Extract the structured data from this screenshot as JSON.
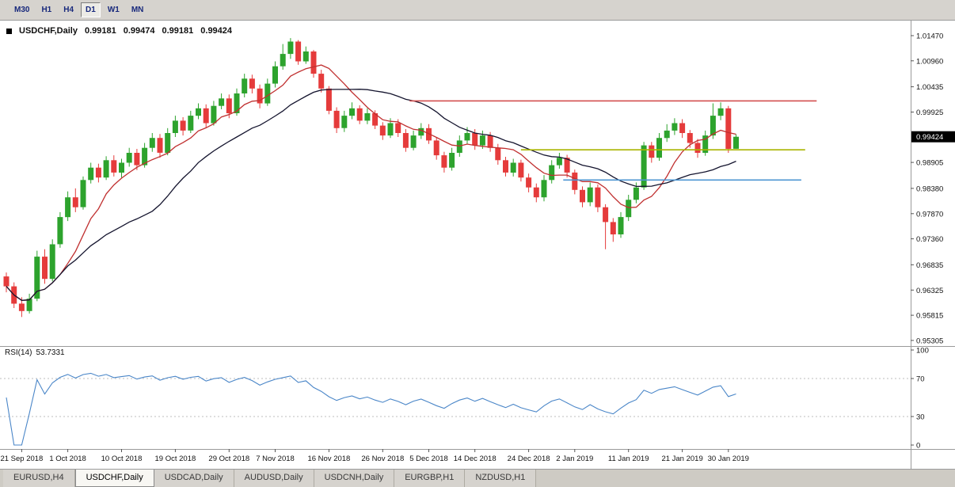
{
  "toolbar": {
    "timeframes": [
      {
        "label": "M30",
        "active": false
      },
      {
        "label": "H1",
        "active": false
      },
      {
        "label": "H4",
        "active": false
      },
      {
        "label": "D1",
        "active": true
      },
      {
        "label": "W1",
        "active": false
      },
      {
        "label": "MN",
        "active": false
      }
    ]
  },
  "chart_header": {
    "symbol": "USDCHF,Daily",
    "open": "0.99181",
    "high": "0.99474",
    "low": "0.99181",
    "close": "0.99424"
  },
  "rsi_header": {
    "label": "RSI(14)",
    "value": "53.7331"
  },
  "price_axis": {
    "labels": [
      "1.01470",
      "1.00960",
      "1.00435",
      "0.99925",
      "0.98905",
      "0.98380",
      "0.97870",
      "0.97360",
      "0.96835",
      "0.96325",
      "0.95815",
      "0.95305"
    ],
    "current": "0.99424"
  },
  "time_axis": {
    "ticks": [
      {
        "label": "21 Sep 2018",
        "index": 2
      },
      {
        "label": "1 Oct 2018",
        "index": 8
      },
      {
        "label": "10 Oct 2018",
        "index": 15
      },
      {
        "label": "19 Oct 2018",
        "index": 22
      },
      {
        "label": "29 Oct 2018",
        "index": 29
      },
      {
        "label": "7 Nov 2018",
        "index": 35
      },
      {
        "label": "16 Nov 2018",
        "index": 42
      },
      {
        "label": "26 Nov 2018",
        "index": 49
      },
      {
        "label": "5 Dec 2018",
        "index": 55
      },
      {
        "label": "14 Dec 2018",
        "index": 61
      },
      {
        "label": "24 Dec 2018",
        "index": 68
      },
      {
        "label": "2 Jan 2019",
        "index": 74
      },
      {
        "label": "11 Jan 2019",
        "index": 81
      },
      {
        "label": "21 Jan 2019",
        "index": 88
      },
      {
        "label": "30 Jan 2019",
        "index": 94
      }
    ]
  },
  "tabbar": {
    "tabs": [
      {
        "label": "EURUSD,H4",
        "active": false
      },
      {
        "label": "USDCHF,Daily",
        "active": true
      },
      {
        "label": "USDCAD,Daily",
        "active": false
      },
      {
        "label": "AUDUSD,Daily",
        "active": false
      },
      {
        "label": "USDCNH,Daily",
        "active": false
      },
      {
        "label": "EURGBP,H1",
        "active": false
      },
      {
        "label": "NZDUSD,H1",
        "active": false
      }
    ]
  },
  "chart_data": {
    "type": "candlestick",
    "symbol": "USDCHF",
    "timeframe": "Daily",
    "last_bar": {
      "open": 0.99181,
      "high": 0.99474,
      "low": 0.99181,
      "close": 0.99424
    },
    "price_range": [
      0.95192,
      1.01774
    ],
    "colors": {
      "bull": "#2DA32D",
      "bear": "#E53B3B"
    },
    "ohlc": [
      [
        0.966,
        0.9668,
        0.9628,
        0.964
      ],
      [
        0.964,
        0.9648,
        0.9596,
        0.9605
      ],
      [
        0.9605,
        0.9618,
        0.9578,
        0.959
      ],
      [
        0.959,
        0.9625,
        0.9585,
        0.9615
      ],
      [
        0.9615,
        0.9712,
        0.961,
        0.97
      ],
      [
        0.97,
        0.9715,
        0.9645,
        0.9655
      ],
      [
        0.9655,
        0.9735,
        0.965,
        0.9725
      ],
      [
        0.9725,
        0.979,
        0.9718,
        0.978
      ],
      [
        0.978,
        0.9832,
        0.9772,
        0.982
      ],
      [
        0.982,
        0.9838,
        0.979,
        0.98
      ],
      [
        0.98,
        0.9862,
        0.9795,
        0.9855
      ],
      [
        0.9855,
        0.989,
        0.9848,
        0.988
      ],
      [
        0.988,
        0.9888,
        0.985,
        0.986
      ],
      [
        0.986,
        0.9903,
        0.9855,
        0.9895
      ],
      [
        0.9895,
        0.9905,
        0.9862,
        0.987
      ],
      [
        0.987,
        0.9898,
        0.986,
        0.989
      ],
      [
        0.989,
        0.992,
        0.9882,
        0.991
      ],
      [
        0.991,
        0.9918,
        0.9875,
        0.9885
      ],
      [
        0.9885,
        0.993,
        0.988,
        0.992
      ],
      [
        0.992,
        0.995,
        0.9912,
        0.994
      ],
      [
        0.994,
        0.9948,
        0.99,
        0.991
      ],
      [
        0.991,
        0.996,
        0.9905,
        0.995
      ],
      [
        0.995,
        0.9985,
        0.9942,
        0.9975
      ],
      [
        0.9975,
        0.9982,
        0.9945,
        0.9955
      ],
      [
        0.9955,
        0.9995,
        0.995,
        0.9985
      ],
      [
        0.9985,
        1.001,
        0.9978,
        1.0
      ],
      [
        1.0,
        1.0008,
        0.996,
        0.997
      ],
      [
        0.997,
        1.0015,
        0.9965,
        1.0005
      ],
      [
        1.0005,
        1.003,
        0.9998,
        1.002
      ],
      [
        1.002,
        1.0028,
        0.998,
        0.999
      ],
      [
        0.999,
        1.004,
        0.9985,
        1.003
      ],
      [
        1.003,
        1.007,
        1.0022,
        1.006
      ],
      [
        1.006,
        1.0068,
        1.003,
        1.004
      ],
      [
        1.004,
        1.0048,
        1.0,
        1.001
      ],
      [
        1.001,
        1.006,
        1.0005,
        1.005
      ],
      [
        1.005,
        1.0095,
        1.0042,
        1.0085
      ],
      [
        1.0085,
        1.013,
        1.0078,
        1.011
      ],
      [
        1.011,
        1.0142,
        1.01,
        1.0135
      ],
      [
        1.0135,
        1.0138,
        1.0088,
        1.0095
      ],
      [
        1.0095,
        1.0125,
        1.009,
        1.0115
      ],
      [
        1.0115,
        1.0118,
        1.0062,
        1.007
      ],
      [
        1.007,
        1.0078,
        1.0032,
        1.004
      ],
      [
        1.004,
        1.0045,
        0.9988,
        0.9995
      ],
      [
        0.9995,
        1.0002,
        0.995,
        0.996
      ],
      [
        0.996,
        0.9995,
        0.9952,
        0.9985
      ],
      [
        0.9985,
        1.0012,
        0.9978,
        1.0
      ],
      [
        1.0,
        1.0006,
        0.9968,
        0.9975
      ],
      [
        0.9975,
        1.0,
        0.9968,
        0.999
      ],
      [
        0.999,
        0.9996,
        0.9958,
        0.9965
      ],
      [
        0.9965,
        0.9972,
        0.9936,
        0.9945
      ],
      [
        0.9945,
        0.998,
        0.994,
        0.997
      ],
      [
        0.997,
        0.9978,
        0.9942,
        0.995
      ],
      [
        0.995,
        0.9958,
        0.9912,
        0.992
      ],
      [
        0.992,
        0.9955,
        0.9915,
        0.9945
      ],
      [
        0.9945,
        0.997,
        0.9938,
        0.996
      ],
      [
        0.996,
        0.9968,
        0.9928,
        0.9935
      ],
      [
        0.9935,
        0.9942,
        0.9896,
        0.9905
      ],
      [
        0.9905,
        0.9912,
        0.987,
        0.988
      ],
      [
        0.988,
        0.992,
        0.9874,
        0.991
      ],
      [
        0.991,
        0.9945,
        0.9902,
        0.9935
      ],
      [
        0.9935,
        0.9962,
        0.9928,
        0.995
      ],
      [
        0.995,
        0.9958,
        0.9916,
        0.9925
      ],
      [
        0.9925,
        0.9955,
        0.9918,
        0.9945
      ],
      [
        0.9945,
        0.9952,
        0.9912,
        0.992
      ],
      [
        0.992,
        0.9928,
        0.9886,
        0.9895
      ],
      [
        0.9895,
        0.9902,
        0.9862,
        0.987
      ],
      [
        0.987,
        0.9898,
        0.9862,
        0.989
      ],
      [
        0.989,
        0.9896,
        0.9852,
        0.986
      ],
      [
        0.986,
        0.9868,
        0.983,
        0.984
      ],
      [
        0.984,
        0.9848,
        0.981,
        0.982
      ],
      [
        0.982,
        0.9865,
        0.9812,
        0.9855
      ],
      [
        0.9855,
        0.9895,
        0.9848,
        0.9885
      ],
      [
        0.9885,
        0.991,
        0.9878,
        0.99
      ],
      [
        0.99,
        0.9906,
        0.986,
        0.987
      ],
      [
        0.987,
        0.9876,
        0.9826,
        0.9835
      ],
      [
        0.9835,
        0.9842,
        0.98,
        0.981
      ],
      [
        0.981,
        0.985,
        0.9802,
        0.984
      ],
      [
        0.984,
        0.9846,
        0.979,
        0.98
      ],
      [
        0.98,
        0.9806,
        0.9715,
        0.977
      ],
      [
        0.977,
        0.9778,
        0.973,
        0.9745
      ],
      [
        0.9745,
        0.979,
        0.9738,
        0.978
      ],
      [
        0.978,
        0.9825,
        0.9772,
        0.9815
      ],
      [
        0.9815,
        0.985,
        0.9808,
        0.984
      ],
      [
        0.984,
        0.9932,
        0.9835,
        0.9925
      ],
      [
        0.9925,
        0.9932,
        0.989,
        0.99
      ],
      [
        0.99,
        0.995,
        0.9894,
        0.994
      ],
      [
        0.994,
        0.9968,
        0.9932,
        0.9955
      ],
      [
        0.9955,
        0.998,
        0.9946,
        0.997
      ],
      [
        0.997,
        0.9978,
        0.994,
        0.995
      ],
      [
        0.995,
        0.9956,
        0.992,
        0.993
      ],
      [
        0.993,
        0.9938,
        0.99,
        0.991
      ],
      [
        0.991,
        0.9955,
        0.9904,
        0.9945
      ],
      [
        0.9945,
        1.001,
        0.9938,
        0.9985
      ],
      [
        0.9985,
        1.0012,
        0.9976,
        1.0
      ],
      [
        1.0,
        1.0005,
        0.991,
        0.9918
      ],
      [
        0.99181,
        0.99474,
        0.99181,
        0.99424
      ]
    ],
    "moving_averages": [
      {
        "name": "ma-fast-line",
        "period": 8,
        "color": "#C03030"
      },
      {
        "name": "ma-slow-line",
        "period": 20,
        "color": "#14142E"
      }
    ],
    "horizontal_lines": [
      {
        "name": "hline-resistance",
        "price": 1.0015,
        "color": "#D34F4F",
        "from": 52.5,
        "to": 105.5
      },
      {
        "name": "hline-pivot",
        "price": 0.9916,
        "color": "#A9B400",
        "from": 67,
        "to": 104
      },
      {
        "name": "hline-support",
        "price": 0.9855,
        "color": "#4E96D2",
        "from": 72.5,
        "to": 103.5
      }
    ],
    "rsi": {
      "period": 14,
      "current": 53.7331,
      "color": "#4A86C8",
      "range": [
        0,
        100
      ],
      "dotted_levels": [
        70,
        30
      ],
      "axis_labels": [
        "100",
        "70",
        "30",
        "0"
      ]
    }
  }
}
